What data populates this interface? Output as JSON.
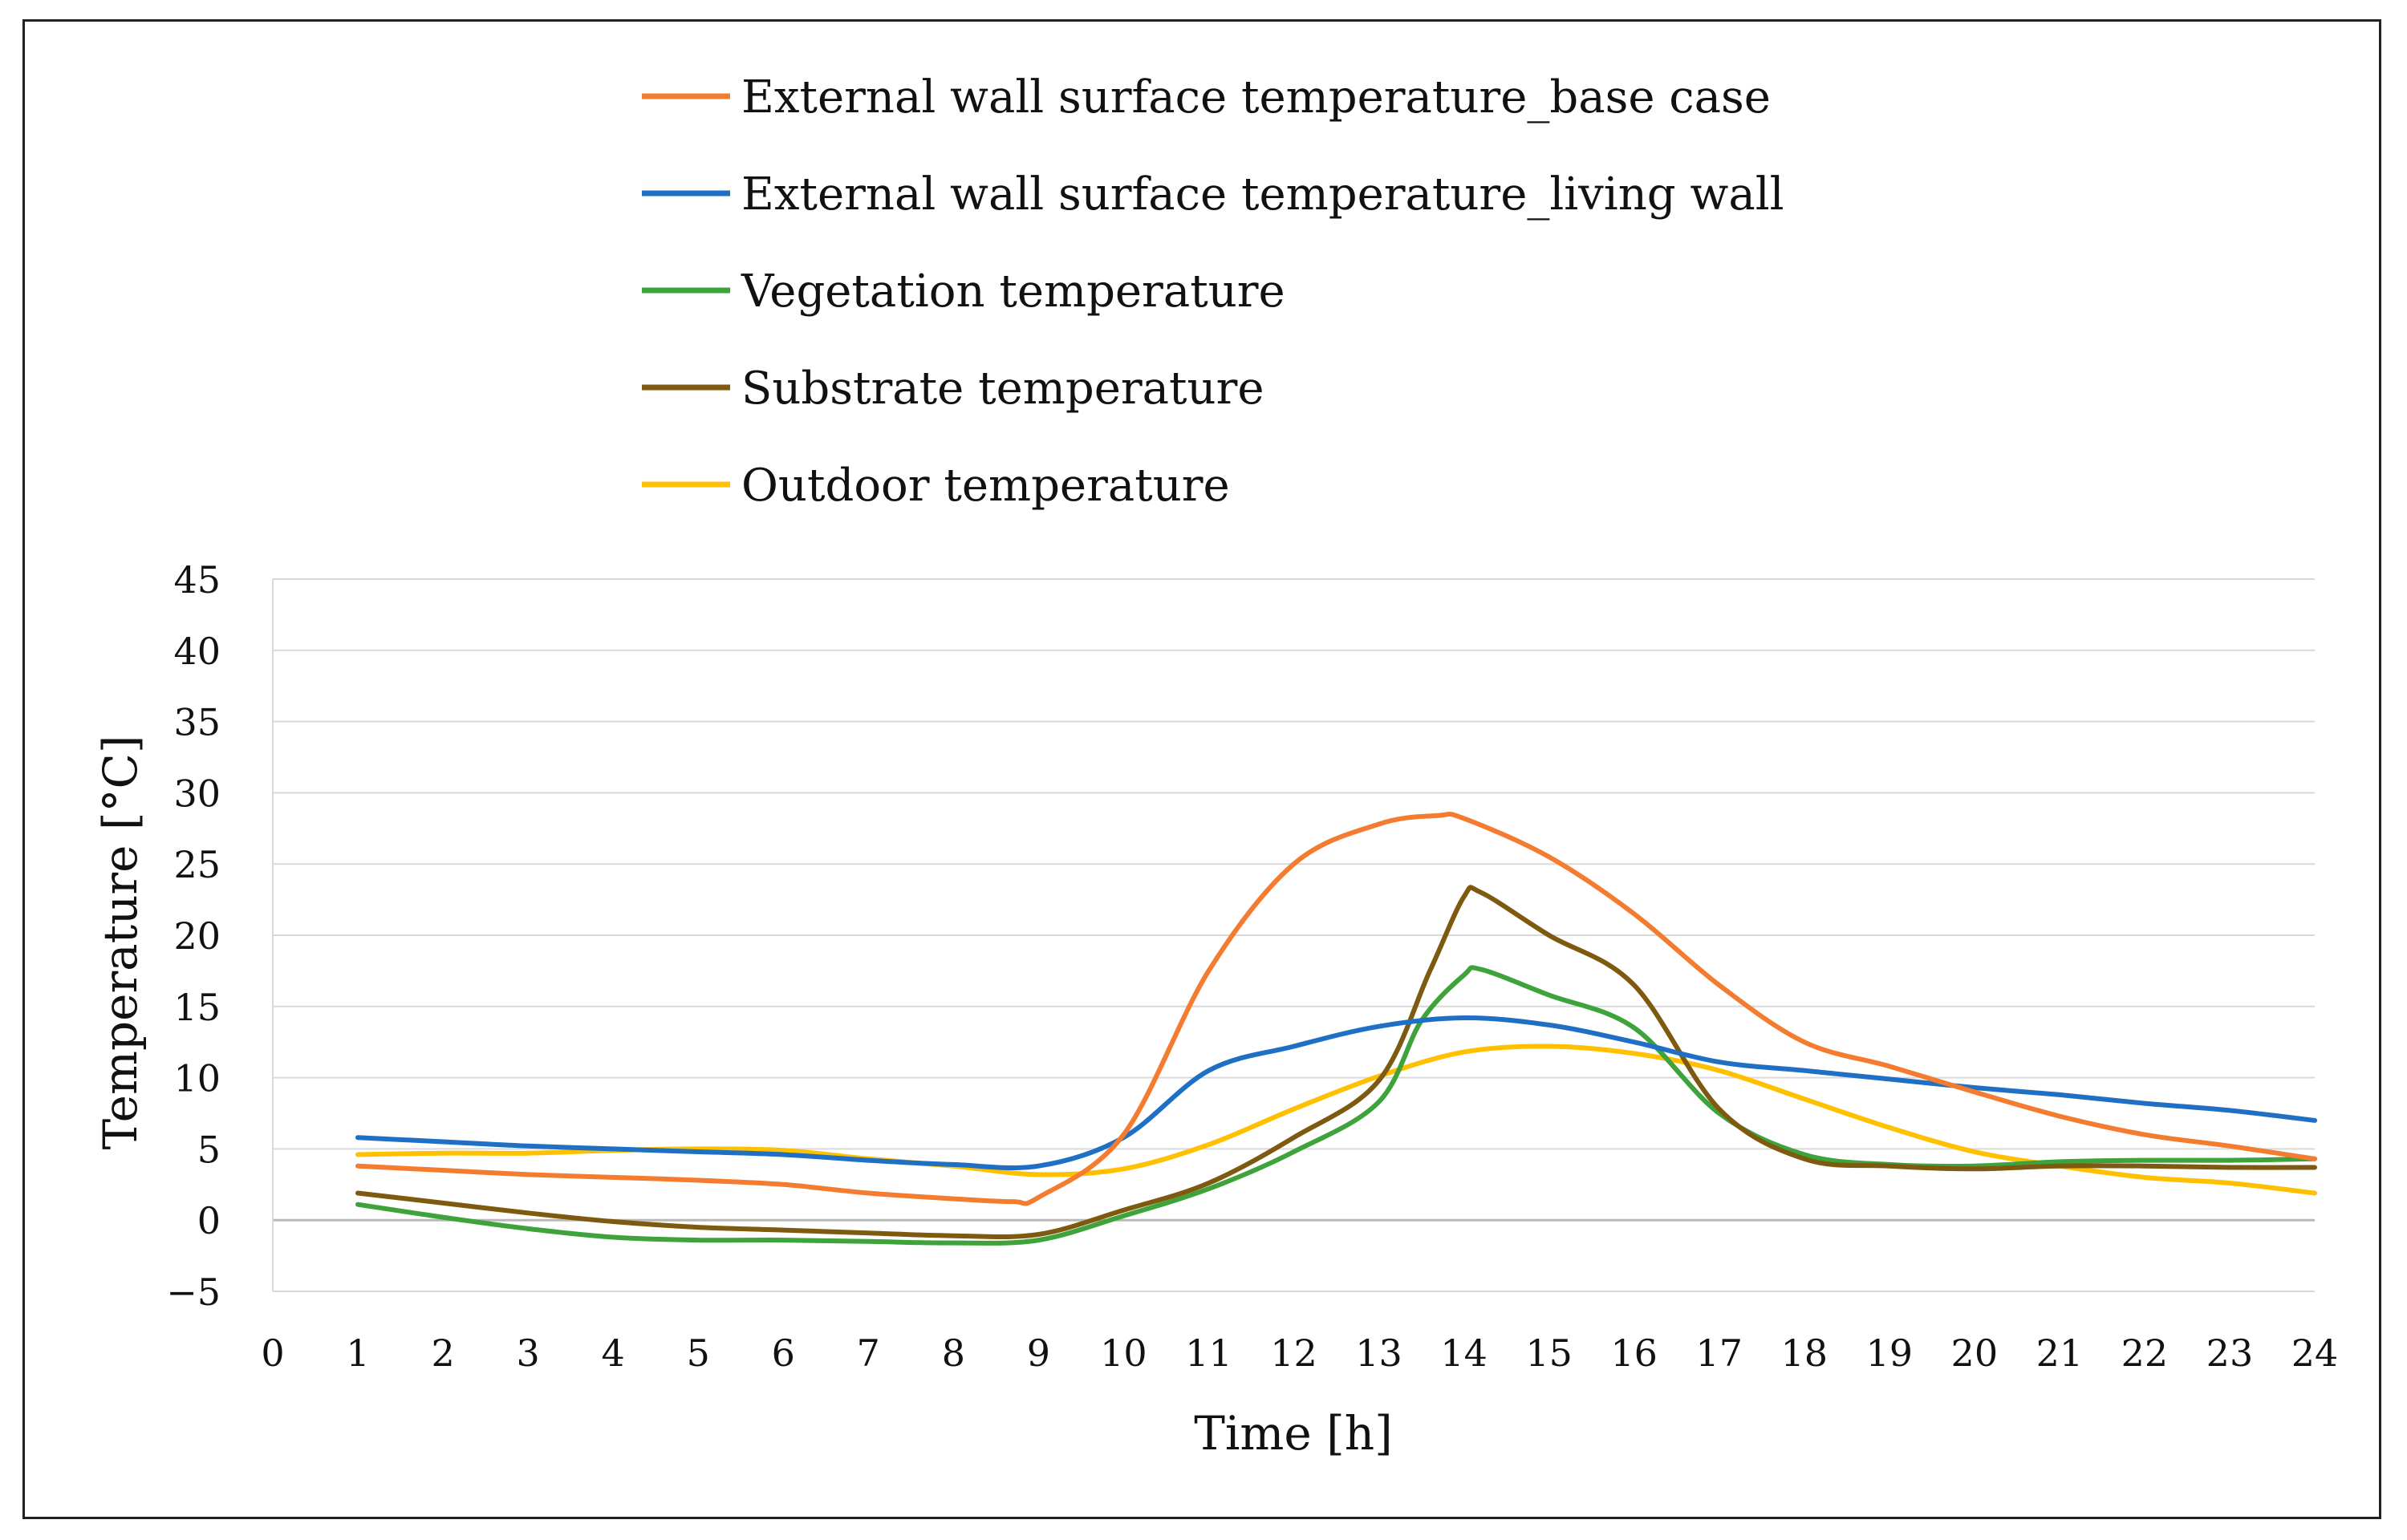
{
  "chart_data": {
    "type": "line",
    "title": "",
    "xlabel": "Time [h]",
    "ylabel": "Temperature [°C]",
    "xlim": [
      0,
      24
    ],
    "ylim": [
      -5,
      45
    ],
    "y_ticks": [
      -5,
      0,
      5,
      10,
      15,
      20,
      25,
      30,
      35,
      40,
      45
    ],
    "y_tick_labels": [
      "−5",
      "0",
      "5",
      "10",
      "15",
      "20",
      "25",
      "30",
      "35",
      "40",
      "45"
    ],
    "x_ticks": [
      0,
      1,
      2,
      3,
      4,
      5,
      6,
      7,
      8,
      9,
      10,
      11,
      12,
      13,
      14,
      15,
      16,
      17,
      18,
      19,
      20,
      21,
      22,
      23,
      24
    ],
    "grid": "horizontal",
    "legend_position": "top",
    "series": [
      {
        "name": "External wall surface temperature_base case",
        "color": "#F47C30",
        "x": [
          1,
          2,
          3,
          4,
          5,
          6,
          7,
          8,
          8.7,
          9,
          10,
          11,
          12,
          13,
          13.7,
          14,
          15,
          16,
          17,
          18,
          19,
          20,
          21,
          22,
          23,
          24
        ],
        "values": [
          3.8,
          3.5,
          3.2,
          3.0,
          2.8,
          2.5,
          1.9,
          1.5,
          1.3,
          1.6,
          6.0,
          17.5,
          25.0,
          27.8,
          28.4,
          28.2,
          25.5,
          21.5,
          16.5,
          12.5,
          10.8,
          9.0,
          7.3,
          6.0,
          5.2,
          4.3
        ]
      },
      {
        "name": "External wall surface temperature_living wall",
        "color": "#1F6FC4",
        "x": [
          1,
          2,
          3,
          4,
          5,
          6,
          7,
          8,
          9,
          10,
          11,
          12,
          13,
          14,
          15,
          16,
          17,
          18,
          19,
          20,
          21,
          22,
          23,
          24
        ],
        "values": [
          5.8,
          5.5,
          5.2,
          5.0,
          4.8,
          4.6,
          4.2,
          3.9,
          3.8,
          5.8,
          10.5,
          12.2,
          13.6,
          14.2,
          13.7,
          12.5,
          11.1,
          10.5,
          9.9,
          9.3,
          8.8,
          8.2,
          7.7,
          7.0
        ]
      },
      {
        "name": "Vegetation temperature",
        "color": "#3EA33A",
        "x": [
          1,
          2,
          3,
          4,
          5,
          6,
          7,
          8,
          9,
          10,
          11,
          12,
          13,
          13.5,
          14,
          14.2,
          15,
          16,
          17,
          18,
          19,
          20,
          21,
          22,
          23,
          24
        ],
        "values": [
          1.1,
          0.2,
          -0.6,
          -1.2,
          -1.4,
          -1.4,
          -1.5,
          -1.6,
          -1.4,
          0.3,
          2.2,
          4.8,
          8.3,
          14.0,
          17.2,
          17.6,
          15.8,
          13.5,
          7.5,
          4.6,
          3.9,
          3.8,
          4.1,
          4.2,
          4.2,
          4.3
        ]
      },
      {
        "name": "Substrate temperature",
        "color": "#7E5A10",
        "x": [
          1,
          2,
          3,
          4,
          5,
          6,
          7,
          8,
          9,
          10,
          11,
          12,
          13,
          13.6,
          14,
          14.2,
          15,
          16,
          17,
          18,
          19,
          20,
          21,
          22,
          23,
          24
        ],
        "values": [
          1.9,
          1.2,
          0.5,
          -0.1,
          -0.5,
          -0.7,
          -0.9,
          -1.1,
          -1.0,
          0.7,
          2.6,
          5.8,
          9.8,
          17.5,
          22.7,
          23.0,
          20.0,
          16.5,
          7.8,
          4.3,
          3.8,
          3.6,
          3.8,
          3.8,
          3.7,
          3.7
        ]
      },
      {
        "name": "Outdoor temperature",
        "color": "#FFC000",
        "x": [
          1,
          2,
          3,
          4,
          5,
          6,
          7,
          8,
          9,
          10,
          11,
          12,
          13,
          14,
          15,
          16,
          17,
          18,
          19,
          20,
          21,
          22,
          23,
          24
        ],
        "values": [
          4.6,
          4.7,
          4.7,
          4.9,
          5.0,
          4.9,
          4.3,
          3.8,
          3.2,
          3.6,
          5.3,
          7.8,
          10.1,
          11.8,
          12.2,
          11.7,
          10.5,
          8.5,
          6.5,
          4.8,
          3.8,
          3.0,
          2.6,
          1.9
        ]
      }
    ]
  }
}
